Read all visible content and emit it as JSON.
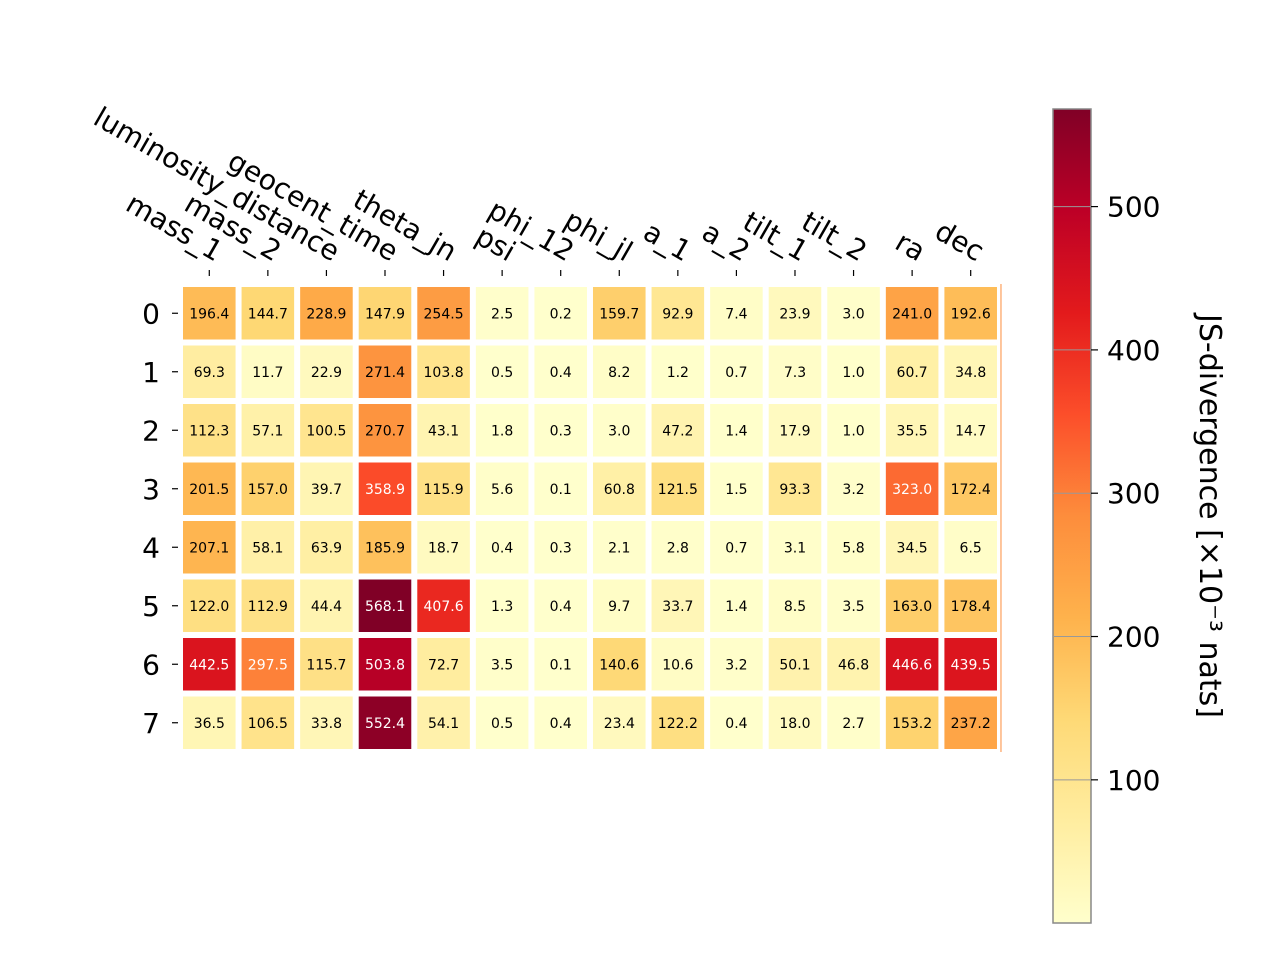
{
  "chart_data": {
    "type": "heatmap",
    "x_labels": [
      "mass_1",
      "mass_2",
      "luminosity_distance",
      "geocent_time",
      "theta_jn",
      "psi",
      "phi_12",
      "phi_jl",
      "a_1",
      "a_2",
      "tilt_1",
      "tilt_2",
      "ra",
      "dec"
    ],
    "y_labels": [
      "0",
      "1",
      "2",
      "3",
      "4",
      "5",
      "6",
      "7"
    ],
    "values": [
      [
        196.4,
        144.7,
        228.9,
        147.9,
        254.5,
        2.5,
        0.2,
        159.7,
        92.9,
        7.4,
        23.9,
        3.0,
        241.0,
        192.6
      ],
      [
        69.3,
        11.7,
        22.9,
        271.4,
        103.8,
        0.5,
        0.4,
        8.2,
        1.2,
        0.7,
        7.3,
        1.0,
        60.7,
        34.8
      ],
      [
        112.3,
        57.1,
        100.5,
        270.7,
        43.1,
        1.8,
        0.3,
        3.0,
        47.2,
        1.4,
        17.9,
        1.0,
        35.5,
        14.7
      ],
      [
        201.5,
        157.0,
        39.7,
        358.9,
        115.9,
        5.6,
        0.1,
        60.8,
        121.5,
        1.5,
        93.3,
        3.2,
        323.0,
        172.4
      ],
      [
        207.1,
        58.1,
        63.9,
        185.9,
        18.7,
        0.4,
        0.3,
        2.1,
        2.8,
        0.7,
        3.1,
        5.8,
        34.5,
        6.5
      ],
      [
        122.0,
        112.9,
        44.4,
        568.1,
        407.6,
        1.3,
        0.4,
        9.7,
        33.7,
        1.4,
        8.5,
        3.5,
        163.0,
        178.4
      ],
      [
        442.5,
        297.5,
        115.7,
        503.8,
        72.7,
        3.5,
        0.1,
        140.6,
        10.6,
        3.2,
        50.1,
        46.8,
        446.6,
        439.5
      ],
      [
        36.5,
        106.5,
        33.8,
        552.4,
        54.1,
        0.5,
        0.4,
        23.4,
        122.2,
        0.4,
        18.0,
        2.7,
        153.2,
        237.2
      ]
    ],
    "colorbar": {
      "label": "JS-divergence [×10⁻³ nats]",
      "ticks": [
        100,
        200,
        300,
        400,
        500
      ],
      "vmin": 0.1,
      "vmax": 568.1,
      "colormap": "YlOrRd",
      "colors": [
        "#ffffcc",
        "#ffeda0",
        "#fed976",
        "#feb24c",
        "#fd8d3c",
        "#fc4e2a",
        "#e31a1c",
        "#bd0026",
        "#800026"
      ]
    }
  }
}
